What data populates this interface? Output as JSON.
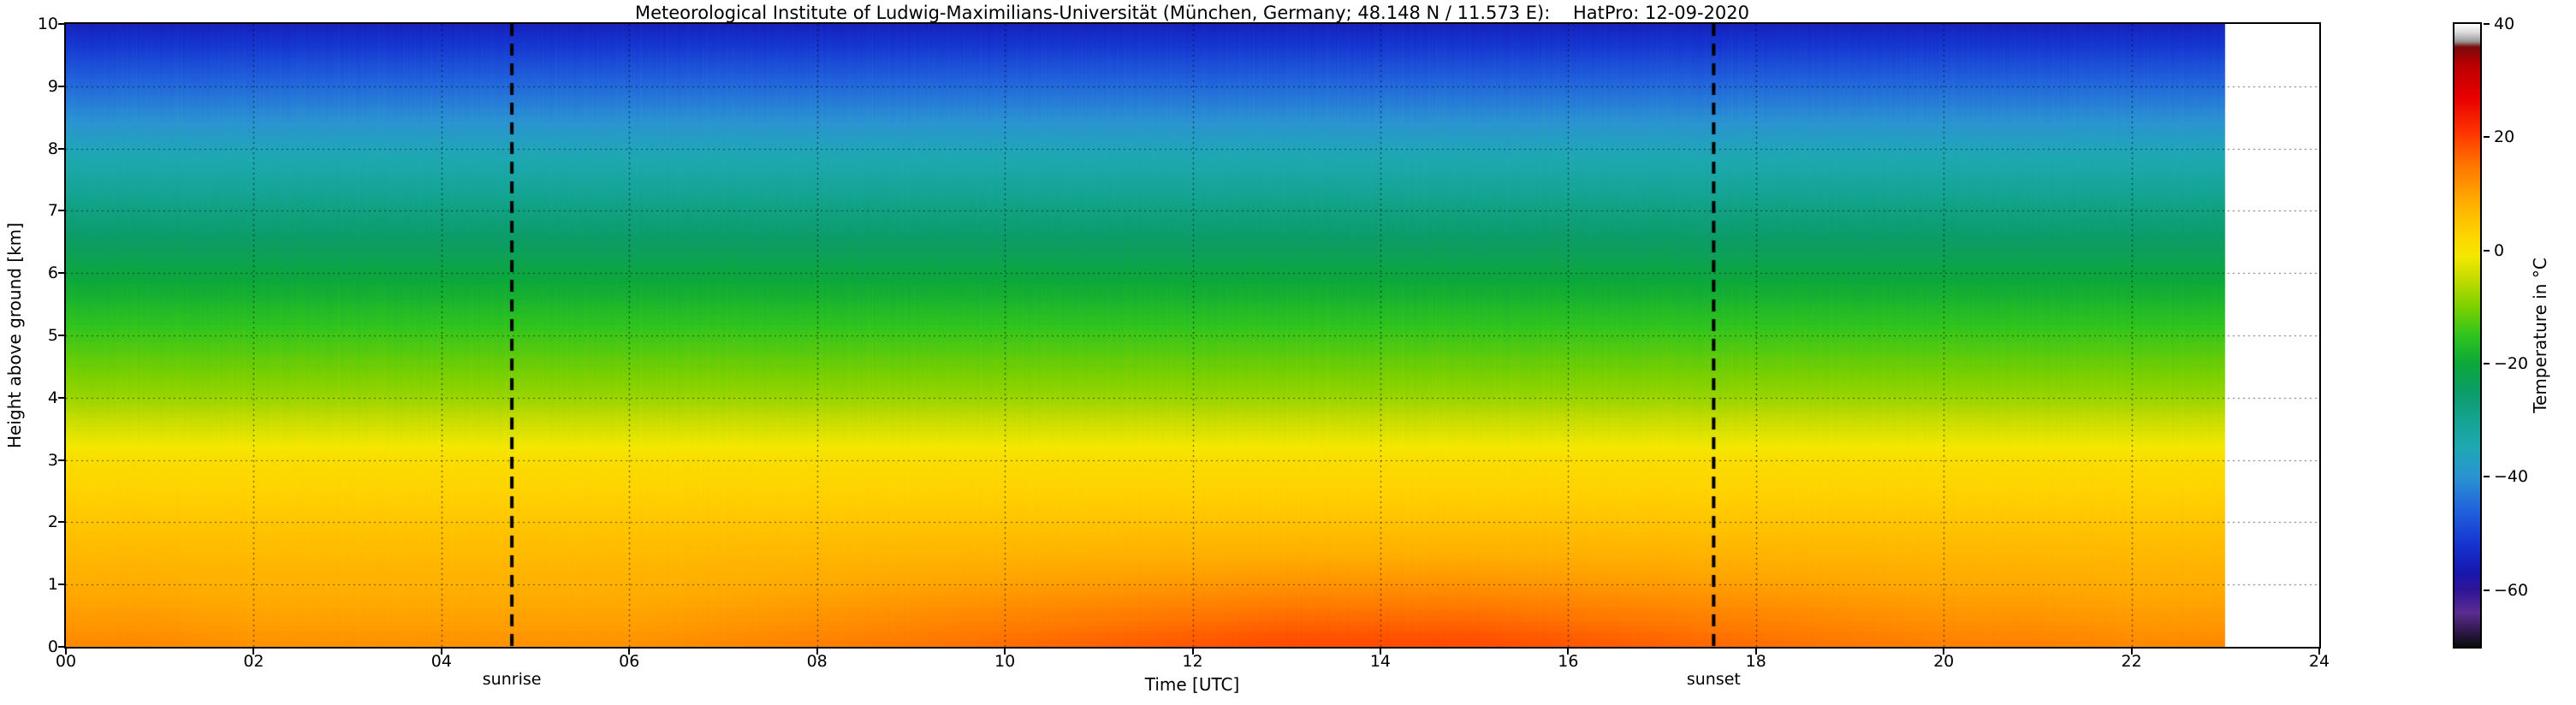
{
  "chart_data": {
    "type": "heatmap",
    "title": "Meteorological Institute of Ludwig-Maximilians-Universität (München, Germany; 48.148 N / 11.573 E):    HatPro: 12-09-2020",
    "xlabel": "Time [UTC]",
    "ylabel": "Height above ground [km]",
    "colorbar_label": "Temperature in  °C",
    "x_range": [
      0,
      24
    ],
    "y_range": [
      0,
      10
    ],
    "data_end_hour": 23,
    "x_ticks": [
      "00",
      "02",
      "04",
      "06",
      "08",
      "10",
      "12",
      "14",
      "16",
      "18",
      "20",
      "22",
      "24"
    ],
    "y_ticks": [
      0,
      1,
      2,
      3,
      4,
      5,
      6,
      7,
      8,
      9,
      10
    ],
    "grid": {
      "x_step": 2,
      "y_step": 1,
      "style": "dashed"
    },
    "colorbar_range": {
      "min": -70,
      "max": 40
    },
    "colorbar_ticks": [
      {
        "t": 40,
        "label": "40"
      },
      {
        "t": 20,
        "label": "20"
      },
      {
        "t": 0,
        "label": "0"
      },
      {
        "t": -20,
        "label": "−20"
      },
      {
        "t": -40,
        "label": "−40"
      },
      {
        "t": -60,
        "label": "−60"
      }
    ],
    "annotations": [
      {
        "label": "sunrise",
        "x": 4.75
      },
      {
        "label": "sunset",
        "x": 17.55
      }
    ],
    "profile": {
      "heights_km": [
        0,
        1,
        2,
        3,
        4,
        5,
        6,
        7,
        8,
        9,
        10
      ],
      "temperature_c": [
        14,
        9,
        5,
        1,
        -8,
        -14,
        -21,
        -28,
        -36,
        -45,
        -55
      ]
    },
    "surface_temp_by_hour": [
      13,
      13,
      12,
      12,
      12,
      12,
      12,
      13,
      14,
      15,
      16,
      17,
      18,
      19,
      19,
      19,
      18,
      17,
      16,
      15,
      14,
      14,
      13,
      13
    ],
    "colormap": [
      [
        40,
        "#ffffff"
      ],
      [
        38.5,
        "#d8d8d8"
      ],
      [
        37,
        "#9a9a9a"
      ],
      [
        36,
        "#7a0a0a"
      ],
      [
        33,
        "#b80000"
      ],
      [
        27,
        "#e80000"
      ],
      [
        21,
        "#ff3300"
      ],
      [
        15,
        "#ff7700"
      ],
      [
        9,
        "#ffaa00"
      ],
      [
        3,
        "#ffd300"
      ],
      [
        -1,
        "#f4e800"
      ],
      [
        -5,
        "#c4dc00"
      ],
      [
        -10,
        "#7cd000"
      ],
      [
        -15,
        "#30c41e"
      ],
      [
        -20,
        "#0ca83a"
      ],
      [
        -25,
        "#0c9c68"
      ],
      [
        -30,
        "#14a492"
      ],
      [
        -35,
        "#1fa8b4"
      ],
      [
        -40,
        "#2b93d2"
      ],
      [
        -46,
        "#2162dc"
      ],
      [
        -52,
        "#1534d0"
      ],
      [
        -57,
        "#1717ae"
      ],
      [
        -60,
        "#2f1596"
      ],
      [
        -64,
        "#5c2d91"
      ],
      [
        -67,
        "#341b52"
      ],
      [
        -70,
        "#0d0d0d"
      ]
    ]
  }
}
